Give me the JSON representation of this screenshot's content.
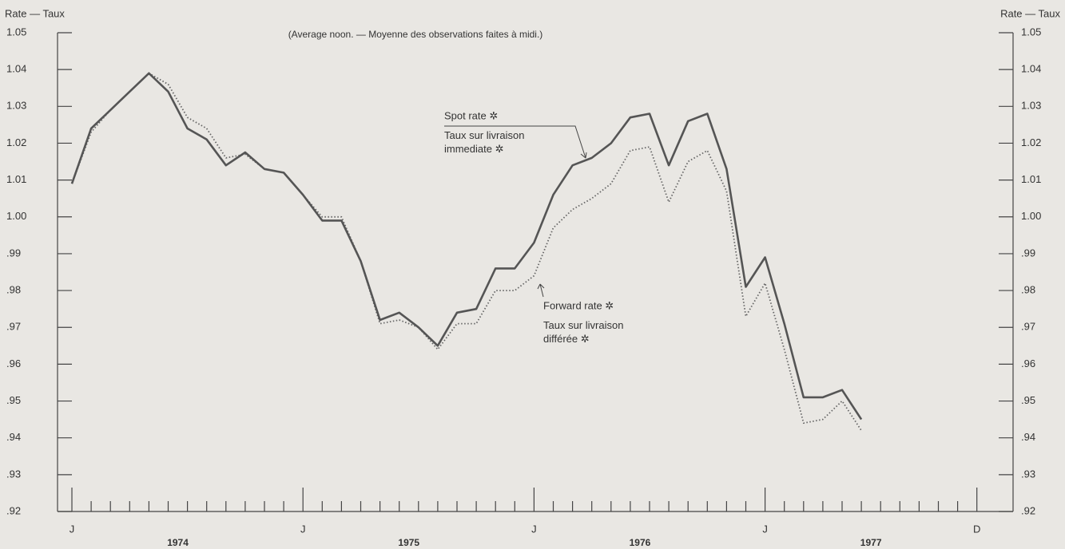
{
  "chart_data": {
    "type": "line",
    "y_label": "Rate — Taux",
    "y2_label": "Rate — Taux",
    "subtitle": "(Average noon. — Moyenne des observations faites à midi.)",
    "categories": [
      "J",
      null,
      null,
      null,
      null,
      null,
      null,
      null,
      null,
      null,
      null,
      null,
      "J",
      null,
      null,
      null,
      null,
      null,
      null,
      null,
      null,
      null,
      null,
      null,
      "J",
      null,
      null,
      null,
      null,
      null,
      null,
      null,
      null,
      null,
      null,
      null,
      "J",
      null,
      null,
      null,
      null,
      null,
      null,
      null,
      null,
      null,
      null,
      "D"
    ],
    "year_labels": [
      "1974",
      "1975",
      "1976",
      "1977"
    ],
    "series": [
      {
        "name": "Spot rate ✲",
        "color": "#555555",
        "style": "solid",
        "values": [
          1.009,
          1.024,
          1.029,
          1.034,
          1.039,
          1.034,
          1.024,
          1.021,
          1.014,
          1.0175,
          1.013,
          1.012,
          1.006,
          0.999,
          0.999,
          0.988,
          0.972,
          0.974,
          0.97,
          0.965,
          0.974,
          0.975,
          0.986,
          0.986,
          0.993,
          1.006,
          1.014,
          1.016,
          1.02,
          1.027,
          1.028,
          1.014,
          1.026,
          1.028,
          1.013,
          0.981,
          0.989,
          0.971,
          0.951,
          0.951,
          0.953,
          0.945,
          null,
          null,
          null,
          null,
          null,
          null
        ]
      },
      {
        "name": "Forward rate ✲",
        "color": "#666666",
        "style": "dotted",
        "values": [
          1.009,
          1.023,
          1.029,
          1.034,
          1.039,
          1.036,
          1.027,
          1.024,
          1.016,
          1.017,
          1.013,
          1.012,
          1.006,
          1.0,
          1.0,
          0.988,
          0.971,
          0.972,
          0.97,
          0.964,
          0.971,
          0.971,
          0.98,
          0.98,
          0.984,
          0.997,
          1.002,
          1.005,
          1.009,
          1.018,
          1.019,
          1.004,
          1.015,
          1.018,
          1.007,
          0.973,
          0.982,
          0.964,
          0.944,
          0.945,
          0.95,
          0.942,
          null,
          null,
          null,
          null,
          null,
          null
        ]
      }
    ],
    "series_notes": [
      "Taux sur livraison immediate ✲",
      "Taux sur livraison différée ✲"
    ],
    "ylim": [
      0.92,
      1.05
    ],
    "yticks": [
      1.05,
      1.04,
      1.03,
      1.02,
      1.01,
      {
        "value": 1.0,
        "label": "1.00"
      },
      {
        "value": 0.99,
        "label": ".99"
      },
      {
        "value": 0.98,
        "label": ".98"
      },
      {
        "value": 0.97,
        "label": ".97"
      },
      {
        "value": 0.96,
        "label": ".96"
      },
      {
        "value": 0.95,
        "label": ".95"
      },
      {
        "value": 0.94,
        "label": ".94"
      },
      {
        "value": 0.93,
        "label": ".93"
      },
      {
        "value": 0.92,
        "label": ".92"
      }
    ],
    "y2lim": [
      0.92,
      1.05
    ],
    "y2ticks": [
      1.05,
      1.04,
      1.03,
      1.02,
      1.01,
      {
        "value": 1.0,
        "label": "1.00"
      },
      {
        "value": 0.99,
        "label": ".99"
      },
      {
        "value": 0.98,
        "label": ".98"
      },
      {
        "value": 0.97,
        "label": ".97"
      },
      {
        "value": 0.96,
        "label": ".96"
      },
      {
        "value": 0.95,
        "label": ".95"
      },
      {
        "value": 0.94,
        "label": ".94"
      },
      {
        "value": 0.93,
        "label": ".93"
      },
      {
        "value": 0.92,
        "label": ".92"
      }
    ]
  }
}
